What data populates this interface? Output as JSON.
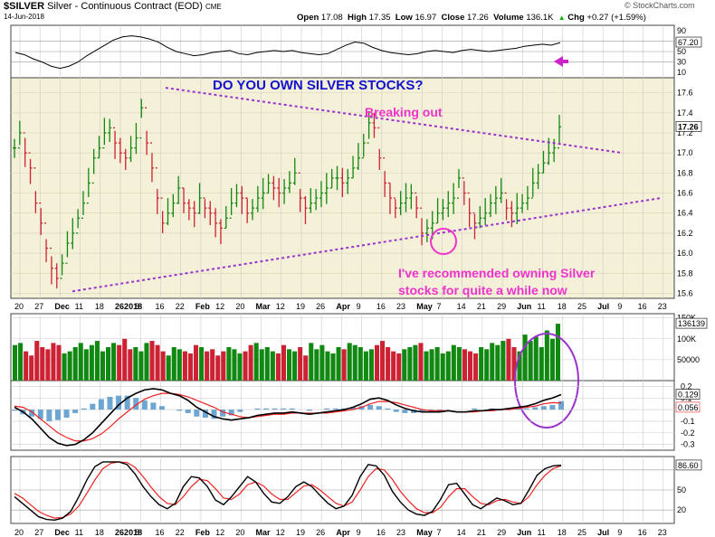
{
  "header": {
    "symbol": "$SILVER",
    "name": "Silver - Continuous Contract (EOD)",
    "exchange": "CME",
    "date": "14-Jun-2018",
    "open_label": "Open",
    "open": "17.08",
    "high_label": "High",
    "high": "17.35",
    "low_label": "Low",
    "low": "16.97",
    "close_label": "Close",
    "close": "17.26",
    "volume_label": "Volume",
    "volume": "136.1K",
    "chg_label": "Chg",
    "chg": "+0.27 (+1.59%)",
    "chg_icon": "up-triangle-icon",
    "copyright": "© StockCharts.com"
  },
  "annotations": {
    "headline": "DO YOU OWN SILVER STOCKS?",
    "breaking": "Breaking out",
    "recommend_line1": "I've recommended owning Silver",
    "recommend_line2": "stocks for quite a while now"
  },
  "colors": {
    "up": "#118811",
    "down": "#cc2233",
    "price_bg": "#f5f0d8",
    "annotation_purple": "#9933cc",
    "annotation_magenta": "#ee33cc",
    "headline_blue": "#1111cc",
    "macd_hist": "#4a90c8",
    "signal_red": "#ee2222"
  },
  "chart_data": {
    "type": "ohlc",
    "panels": [
      {
        "name": "rsi_top",
        "right_axis": [
          "90",
          "50",
          "30",
          "10"
        ],
        "last_value_label": "67.20",
        "values": [
          48,
          44,
          36,
          30,
          22,
          18,
          22,
          30,
          42,
          52,
          62,
          72,
          78,
          80,
          78,
          74,
          68,
          58,
          50,
          46,
          42,
          44,
          48,
          50,
          52,
          46,
          44,
          48,
          50,
          52,
          50,
          52,
          48,
          46,
          44,
          46,
          54,
          62,
          68,
          66,
          58,
          52,
          48,
          46,
          44,
          46,
          50,
          52,
          50,
          48,
          52,
          54,
          52,
          50,
          52,
          54,
          56,
          60,
          62,
          64,
          62,
          67
        ],
        "overbought": 70,
        "oversold": 30
      },
      {
        "name": "price",
        "right_axis": [
          "17.6",
          "17.4",
          "17.2",
          "17.0",
          "16.8",
          "16.6",
          "16.4",
          "16.2",
          "16.0",
          "15.8",
          "15.6"
        ],
        "y_range": [
          15.55,
          17.75
        ],
        "last_value_label": "17.26",
        "closes": [
          17.05,
          17.2,
          17.0,
          16.85,
          16.5,
          16.3,
          16.05,
          15.85,
          15.75,
          15.9,
          16.1,
          16.2,
          16.35,
          16.5,
          16.7,
          16.95,
          17.05,
          17.2,
          17.25,
          17.1,
          17.0,
          16.95,
          17.05,
          17.15,
          17.45,
          17.1,
          16.85,
          16.55,
          16.3,
          16.4,
          16.5,
          16.65,
          16.5,
          16.45,
          16.4,
          16.55,
          16.45,
          16.4,
          16.3,
          16.25,
          16.35,
          16.5,
          16.6,
          16.55,
          16.4,
          16.45,
          16.55,
          16.6,
          16.7,
          16.65,
          16.6,
          16.65,
          16.7,
          16.8,
          16.55,
          16.45,
          16.5,
          16.55,
          16.6,
          16.65,
          16.75,
          16.75,
          16.7,
          16.75,
          16.85,
          16.95,
          17.1,
          17.3,
          17.25,
          16.95,
          16.7,
          16.55,
          16.45,
          16.5,
          16.55,
          16.6,
          16.45,
          16.2,
          16.25,
          16.3,
          16.4,
          16.45,
          16.5,
          16.55,
          16.75,
          16.6,
          16.4,
          16.3,
          16.35,
          16.4,
          16.5,
          16.55,
          16.6,
          16.45,
          16.4,
          16.45,
          16.5,
          16.55,
          16.7,
          16.8,
          16.9,
          17.0,
          17.05,
          17.26
        ],
        "x_labels": [
          "20",
          "27",
          "Dec",
          "11",
          "18",
          "262018",
          "8",
          "16",
          "22",
          "Feb",
          "12",
          "20",
          "Mar",
          "12",
          "19",
          "26",
          "Apr",
          "9",
          "16",
          "23",
          "May",
          "7",
          "14",
          "21",
          "29",
          "Jun",
          "11",
          "18",
          "25",
          "Jul",
          "9",
          "16",
          "23"
        ],
        "resistance_line": {
          "x_from": "Jan 9",
          "y_from": 17.65,
          "x_to": "Jul 2",
          "y_to": 17.0
        },
        "support_line": {
          "x_from": "Dec 5",
          "y_from": 15.62,
          "x_to": "Jul 23",
          "y_to": 16.55
        }
      },
      {
        "name": "volume",
        "right_axis": [
          "150K",
          "100K",
          "50000"
        ],
        "last_value_label": "136139",
        "values": [
          85,
          90,
          70,
          60,
          95,
          80,
          75,
          90,
          85,
          65,
          70,
          80,
          90,
          75,
          85,
          95,
          70,
          80,
          90,
          85,
          100,
          75,
          80,
          70,
          90,
          95,
          85,
          70,
          60,
          80,
          75,
          70,
          65,
          85,
          80,
          70,
          75,
          60,
          70,
          80,
          75,
          65,
          70,
          85,
          90,
          75,
          80,
          70,
          65,
          85,
          75,
          70,
          80,
          60,
          90,
          75,
          85,
          70,
          65,
          80,
          75,
          90,
          85,
          80,
          70,
          75,
          85,
          95,
          80,
          70,
          65,
          75,
          80,
          85,
          90,
          70,
          75,
          80,
          65,
          70,
          85,
          80,
          75,
          70,
          65,
          80,
          75,
          90,
          85,
          95,
          100,
          80,
          70,
          110,
          95,
          105,
          80,
          120,
          100,
          136
        ],
        "max": 150
      },
      {
        "name": "macd",
        "right_axis": [
          "0.2",
          "0.1",
          "0.0",
          "-0.1",
          "-0.2",
          "-0.3"
        ],
        "y_range": [
          -0.35,
          0.25
        ],
        "labels": [
          "0.129",
          "0.056"
        ],
        "macd": [
          0.02,
          -0.02,
          -0.08,
          -0.16,
          -0.24,
          -0.29,
          -0.31,
          -0.3,
          -0.26,
          -0.2,
          -0.12,
          -0.04,
          0.04,
          0.1,
          0.14,
          0.17,
          0.18,
          0.17,
          0.14,
          0.12,
          0.08,
          0.02,
          -0.02,
          -0.06,
          -0.08,
          -0.09,
          -0.08,
          -0.07,
          -0.05,
          -0.04,
          -0.03,
          -0.03,
          -0.02,
          -0.03,
          -0.04,
          -0.03,
          -0.02,
          -0.01,
          0.0,
          0.02,
          0.05,
          0.09,
          0.1,
          0.08,
          0.04,
          0.01,
          -0.01,
          -0.02,
          -0.02,
          -0.02,
          -0.01,
          -0.02,
          -0.02,
          -0.01,
          -0.01,
          0.0,
          0.0,
          0.01,
          0.02,
          0.03,
          0.05,
          0.08,
          0.1,
          0.129
        ],
        "signal": [
          0.03,
          0.02,
          -0.02,
          -0.08,
          -0.14,
          -0.2,
          -0.24,
          -0.27,
          -0.27,
          -0.25,
          -0.21,
          -0.15,
          -0.08,
          -0.02,
          0.04,
          0.09,
          0.12,
          0.14,
          0.14,
          0.13,
          0.11,
          0.08,
          0.05,
          0.02,
          -0.02,
          -0.04,
          -0.06,
          -0.07,
          -0.06,
          -0.05,
          -0.04,
          -0.04,
          -0.03,
          -0.03,
          -0.03,
          -0.03,
          -0.03,
          -0.02,
          -0.01,
          0.0,
          0.02,
          0.05,
          0.07,
          0.07,
          0.06,
          0.04,
          0.02,
          0.0,
          -0.01,
          -0.01,
          -0.01,
          -0.02,
          -0.02,
          -0.02,
          -0.01,
          -0.01,
          0.0,
          0.0,
          0.01,
          0.02,
          0.03,
          0.05,
          0.06,
          0.056
        ]
      },
      {
        "name": "stochastic",
        "right_axis": [
          "50",
          "20"
        ],
        "last_value_label": "86.60",
        "k": [
          40,
          30,
          20,
          10,
          6,
          5,
          8,
          18,
          40,
          65,
          85,
          92,
          92,
          92,
          88,
          74,
          55,
          40,
          28,
          22,
          30,
          55,
          70,
          68,
          55,
          35,
          28,
          40,
          55,
          70,
          62,
          45,
          32,
          30,
          40,
          55,
          62,
          55,
          42,
          30,
          22,
          26,
          42,
          70,
          88,
          86,
          72,
          48,
          32,
          20,
          14,
          12,
          18,
          36,
          58,
          60,
          44,
          28,
          22,
          30,
          38,
          34,
          28,
          30,
          50,
          72,
          82,
          86,
          87
        ],
        "d": [
          45,
          38,
          28,
          18,
          12,
          8,
          9,
          14,
          26,
          45,
          65,
          82,
          90,
          92,
          91,
          84,
          70,
          54,
          40,
          30,
          28,
          40,
          55,
          66,
          64,
          52,
          38,
          36,
          44,
          58,
          62,
          56,
          44,
          36,
          36,
          46,
          56,
          58,
          50,
          40,
          30,
          26,
          32,
          50,
          70,
          82,
          80,
          66,
          48,
          34,
          22,
          16,
          16,
          24,
          40,
          52,
          52,
          40,
          30,
          28,
          34,
          36,
          32,
          30,
          40,
          58,
          72,
          82,
          86
        ]
      }
    ],
    "x_labels_bottom": [
      "20",
      "27",
      "Dec",
      "11",
      "18",
      "262018",
      "8",
      "16",
      "22",
      "Feb",
      "12",
      "20",
      "Mar",
      "12",
      "19",
      "26",
      "Apr",
      "9",
      "16",
      "23",
      "May",
      "7",
      "14",
      "21",
      "29",
      "Jun",
      "11",
      "18",
      "25",
      "Jul",
      "9",
      "16",
      "23"
    ]
  }
}
